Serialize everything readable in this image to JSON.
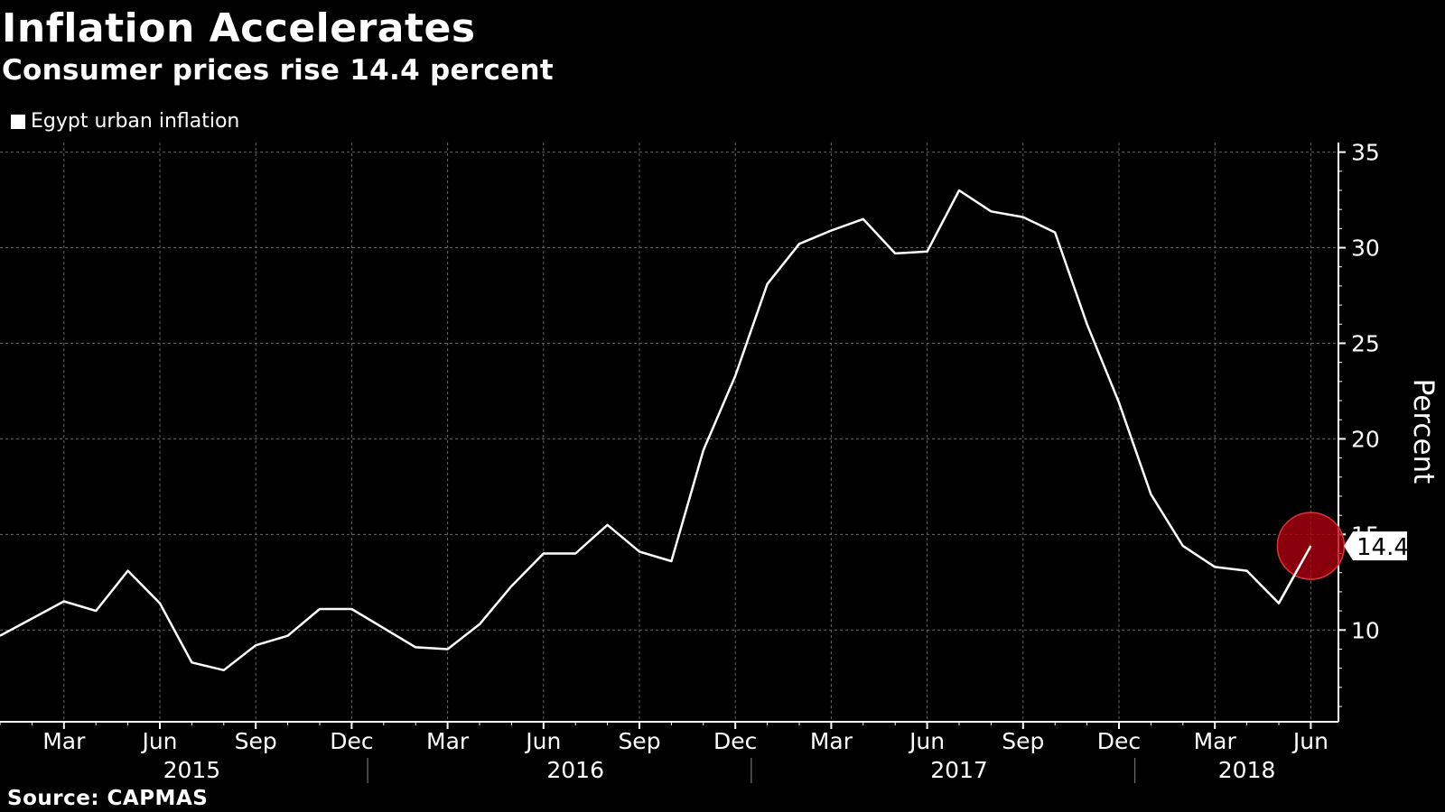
{
  "title": "Inflation Accelerates",
  "subtitle": "Consumer prices rise 14.4 percent",
  "legend": {
    "label": "Egypt urban inflation",
    "color": "#ffffff"
  },
  "source": "Source: CAPMAS",
  "colors": {
    "background": "#000000",
    "line": "#ffffff",
    "grid": "#666666",
    "highlight": "#b0000f"
  },
  "chart_data": {
    "type": "line",
    "title": "Inflation Accelerates",
    "subtitle": "Consumer prices rise 14.4 percent",
    "xlabel": "",
    "ylabel": "Percent",
    "ylim": [
      5.2,
      35.5
    ],
    "yticks": [
      10,
      15,
      20,
      25,
      30,
      35
    ],
    "grid": true,
    "legend_position": "top-left",
    "x": [
      "2015-01",
      "2015-02",
      "2015-03",
      "2015-04",
      "2015-05",
      "2015-06",
      "2015-07",
      "2015-08",
      "2015-09",
      "2015-10",
      "2015-11",
      "2015-12",
      "2016-01",
      "2016-02",
      "2016-03",
      "2016-04",
      "2016-05",
      "2016-06",
      "2016-07",
      "2016-08",
      "2016-09",
      "2016-10",
      "2016-11",
      "2016-12",
      "2017-01",
      "2017-02",
      "2017-03",
      "2017-04",
      "2017-05",
      "2017-06",
      "2017-07",
      "2017-08",
      "2017-09",
      "2017-10",
      "2017-11",
      "2017-12",
      "2018-01",
      "2018-02",
      "2018-03",
      "2018-04",
      "2018-05",
      "2018-06"
    ],
    "x_month_ticks": [
      "Mar",
      "Jun",
      "Sep",
      "Dec",
      "Mar",
      "Jun",
      "Sep",
      "Dec",
      "Mar",
      "Jun",
      "Sep",
      "Dec",
      "Mar",
      "Jun"
    ],
    "x_year_labels": [
      "2015",
      "2016",
      "2017",
      "2018"
    ],
    "series": [
      {
        "name": "Egypt urban inflation",
        "values": [
          9.7,
          10.6,
          11.5,
          11.0,
          13.1,
          11.4,
          8.3,
          7.9,
          9.2,
          9.7,
          11.1,
          11.1,
          10.1,
          9.1,
          9.0,
          10.3,
          12.3,
          14.0,
          14.0,
          15.5,
          14.1,
          13.6,
          19.4,
          23.3,
          28.1,
          30.2,
          30.9,
          31.5,
          29.7,
          29.8,
          33.0,
          31.9,
          31.6,
          30.8,
          26.0,
          21.9,
          17.1,
          14.4,
          13.3,
          13.1,
          11.4,
          14.4
        ]
      }
    ],
    "annotations": [
      {
        "x": "2018-06",
        "label": "14.4"
      }
    ]
  }
}
